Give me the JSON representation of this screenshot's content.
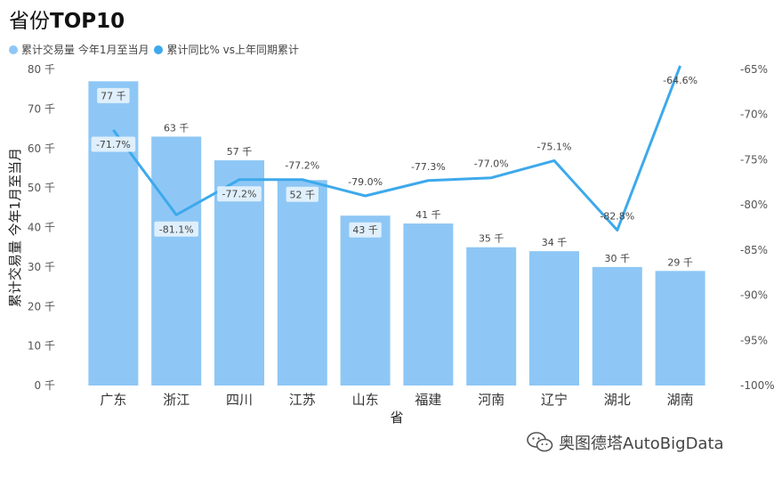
{
  "header": {
    "title_prefix": "省份",
    "title_bold": "TOP10"
  },
  "legend": [
    {
      "label": "累计交易量 今年1月至当月",
      "color": "#8EC7F5"
    },
    {
      "label": "累计同比% vs上年同期累计",
      "color": "#3DA9EC"
    }
  ],
  "watermark": {
    "text": "奥图德塔AutoBigData",
    "icon": "wechat-icon"
  },
  "chart_data": {
    "type": "bar",
    "categories": [
      "广东",
      "浙江",
      "四川",
      "江苏",
      "山东",
      "福建",
      "河南",
      "辽宁",
      "湖北",
      "湖南"
    ],
    "xlabel": "省",
    "ylabel": "累计交易量 今年1月至当月",
    "ylim": [
      0,
      80
    ],
    "y_ticks": [
      0,
      10,
      20,
      30,
      40,
      50,
      60,
      70,
      80
    ],
    "y_tick_labels": [
      "0 千",
      "10 千",
      "20 千",
      "30 千",
      "40 千",
      "50 千",
      "60 千",
      "70 千",
      "80 千"
    ],
    "y2lim": [
      -100,
      -65
    ],
    "y2_ticks": [
      -65,
      -70,
      -75,
      -80,
      -85,
      -90,
      -95,
      -100
    ],
    "y2_tick_labels": [
      "-65%",
      "-70%",
      "-75%",
      "-80%",
      "-85%",
      "-90%",
      "-95%",
      "-100%"
    ],
    "series": [
      {
        "name": "累计交易量 今年1月至当月",
        "type": "bar",
        "color": "#8EC7F5",
        "values": [
          77,
          63,
          57,
          52,
          43,
          41,
          35,
          34,
          30,
          29
        ],
        "labels": [
          "77 千",
          "63 千",
          "57 千",
          "52 千",
          "43 千",
          "41 千",
          "35 千",
          "34 千",
          "30 千",
          "29 千"
        ]
      },
      {
        "name": "累计同比% vs上年同期累计",
        "type": "line",
        "color": "#3DA9EC",
        "values": [
          -71.7,
          -81.1,
          -77.2,
          -77.2,
          -79.0,
          -77.3,
          -77.0,
          -75.1,
          -82.8,
          -64.6
        ],
        "labels": [
          "-71.7%",
          "-81.1%",
          "-77.2%",
          "-77.2%",
          "-79.0%",
          "-77.3%",
          "-77.0%",
          "-75.1%",
          "-82.8%",
          "-64.6%"
        ]
      }
    ],
    "legend_position": "top-left",
    "grid": false
  }
}
